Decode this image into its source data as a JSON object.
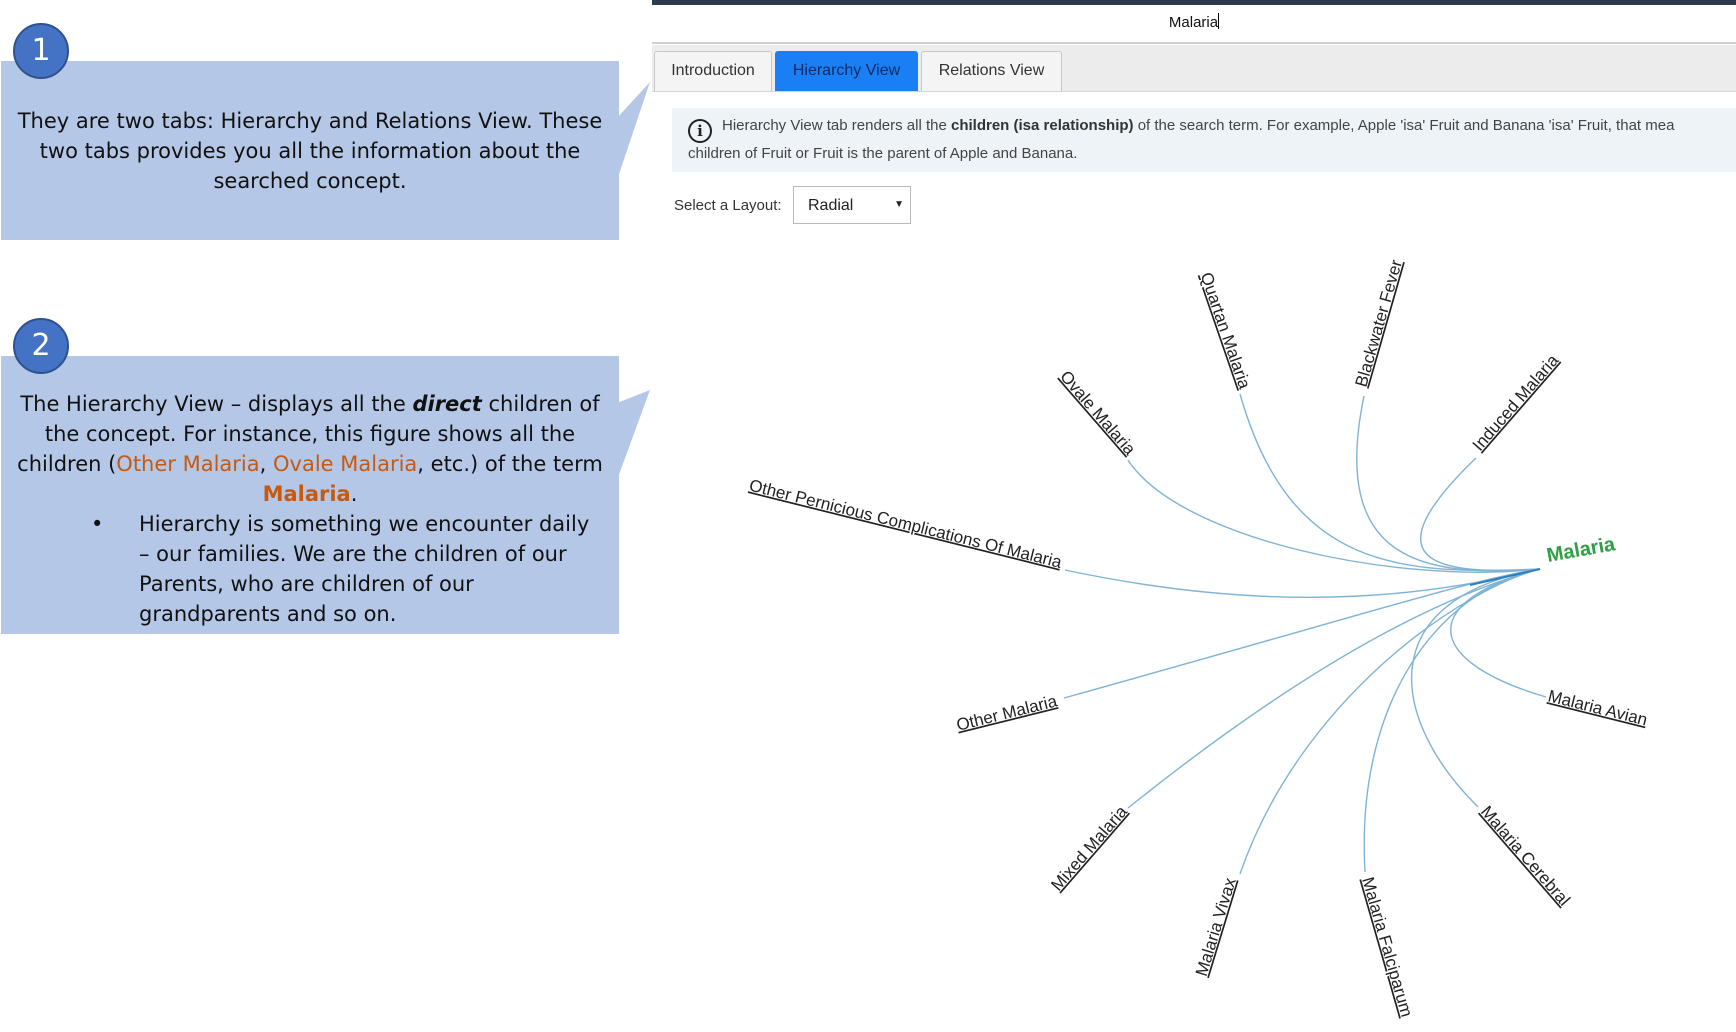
{
  "callouts": [
    {
      "number": "1",
      "text": "They are two tabs: Hierarchy and Relations View. These two tabs provides you all the information about the searched concept."
    },
    {
      "number": "2",
      "intro_before_bold": "The Hierarchy View – displays all the ",
      "bold_word": "direct",
      "intro_after_bold": " children of the concept. For instance, this figure shows all the children (",
      "example1": "Other Malaria",
      "comma": ", ",
      "example2": "Ovale Malaria",
      "middle": ", etc.) of the term ",
      "term": "Malaria",
      "period": ".",
      "bullet_symbol": "•",
      "bullet": "Hierarchy is something we encounter daily – our families. We are the children of our Parents, who are children of our grandparents and so on."
    }
  ],
  "app": {
    "search_value": "Malaria",
    "tabs": [
      "Introduction",
      "Hierarchy View",
      "Relations View"
    ],
    "active_tab": "Hierarchy View",
    "info": {
      "icon": "info-circle-icon",
      "line1_before": "Hierarchy View tab renders all the ",
      "line1_bold": "children (isa relationship)",
      "line1_after": " of the search term. For example, Apple 'isa' Fruit and Banana 'isa' Fruit, that mea",
      "line2": "children of Fruit or Fruit is the parent of Apple and Banana."
    },
    "layout_label": "Select a Layout:",
    "layout_value": "Radial"
  },
  "tree": {
    "root": "Malaria",
    "children": [
      "Quartan Malaria",
      "Blackwater Fever",
      "Ovale Malaria",
      "Induced Malaria",
      "Other Pernicious Complications Of Malaria",
      "Other Malaria",
      "Malaria Avian",
      "Mixed Malaria",
      "Malaria Cerebral",
      "Malaria Vivax",
      "Malaria Falciparum"
    ],
    "colors": {
      "root": "#2ea043",
      "link": "#7fb3d5",
      "label": "#222222"
    }
  }
}
